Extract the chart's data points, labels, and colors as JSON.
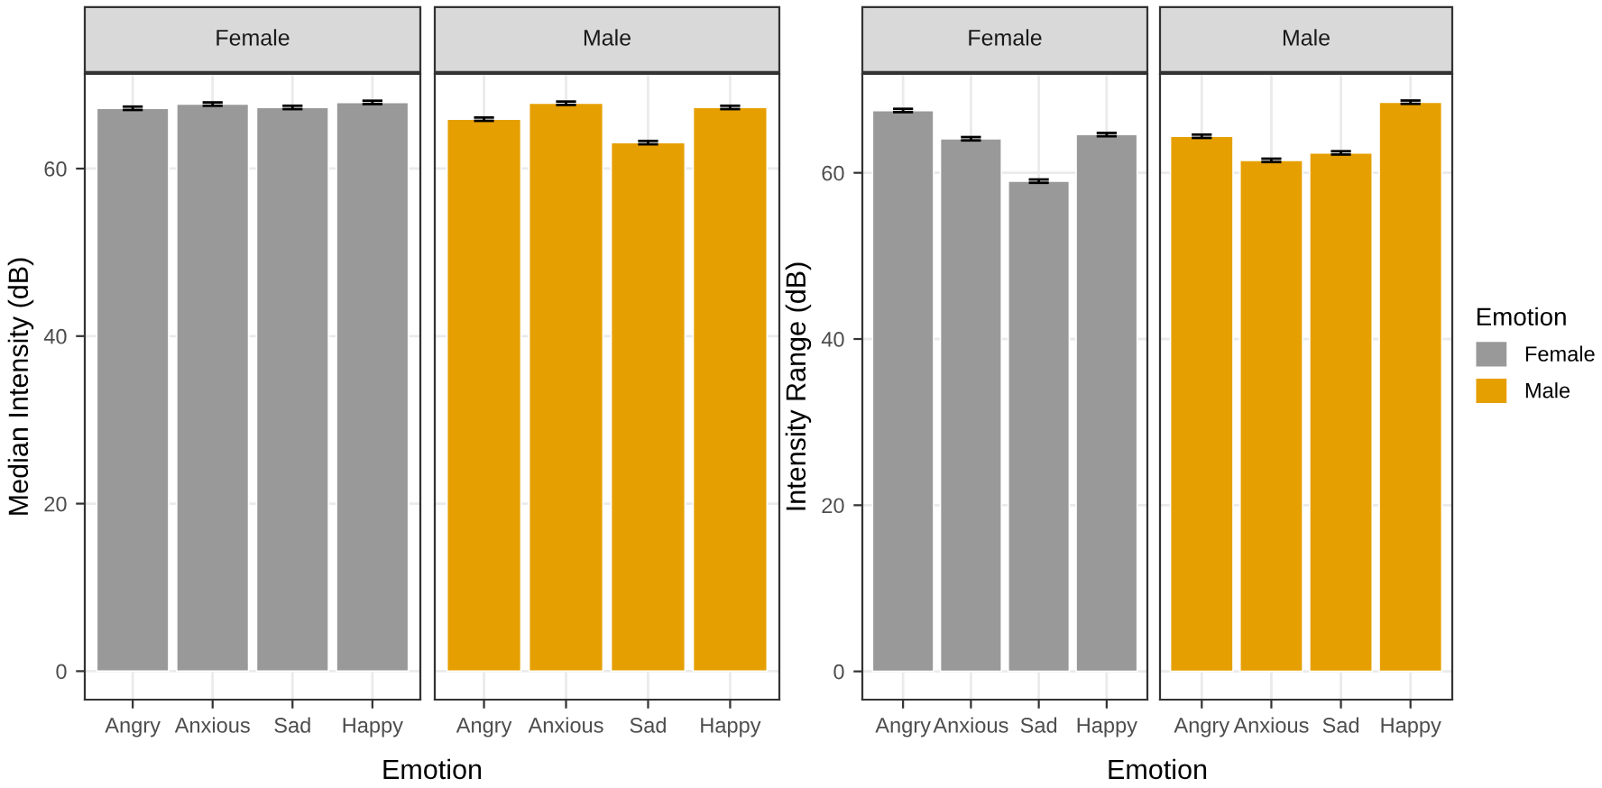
{
  "chart_data": [
    {
      "type": "bar",
      "title": "Female",
      "ylabel": "Median Intensity (dB)",
      "xlabel": "Emotion",
      "categories": [
        "Angry",
        "Anxious",
        "Sad",
        "Happy"
      ],
      "series": [
        {
          "color": "#999999",
          "values": [
            67.2,
            67.7,
            67.3,
            67.9
          ],
          "errors": [
            0.2,
            0.2,
            0.2,
            0.2
          ]
        }
      ],
      "ylim": [
        -3.4,
        71.3
      ],
      "yticks": [
        0,
        20,
        40,
        60
      ],
      "grid": true
    },
    {
      "type": "bar",
      "title": "Male",
      "categories": [
        "Angry",
        "Anxious",
        "Sad",
        "Happy"
      ],
      "series": [
        {
          "color": "#e69f00",
          "values": [
            65.9,
            67.8,
            63.1,
            67.3
          ],
          "errors": [
            0.2,
            0.2,
            0.2,
            0.2
          ]
        }
      ],
      "ylim": [
        -3.4,
        71.3
      ],
      "yticks": [
        0,
        20,
        40,
        60
      ],
      "grid": true,
      "tick_labels": "x"
    },
    {
      "type": "bar",
      "title": "Female",
      "ylabel": "Intensity Range (dB)",
      "xlabel": "Emotion",
      "categories": [
        "Angry",
        "Anxious",
        "Sad",
        "Happy"
      ],
      "series": [
        {
          "name": "Female",
          "color": "#999999",
          "values": [
            67.5,
            64.1,
            59.0,
            64.6
          ],
          "errors": [
            0.2,
            0.2,
            0.2,
            0.2
          ]
        }
      ],
      "ylim": [
        -3.4,
        71.9
      ],
      "yticks": [
        0,
        20,
        40,
        60
      ],
      "grid": true
    },
    {
      "type": "bar",
      "title": "Male",
      "categories": [
        "Angry",
        "Anxious",
        "Sad",
        "Happy"
      ],
      "series": [
        {
          "name": "Male",
          "color": "#e69f00",
          "values": [
            64.4,
            61.5,
            62.4,
            68.5
          ],
          "errors": [
            0.2,
            0.2,
            0.2,
            0.2
          ]
        }
      ],
      "ylim": [
        -3.4,
        71.9
      ],
      "yticks": [
        0,
        20,
        40,
        60
      ],
      "grid": true,
      "tick_labels": "x",
      "legend": "right",
      "legend_title": "Emotion"
    }
  ]
}
